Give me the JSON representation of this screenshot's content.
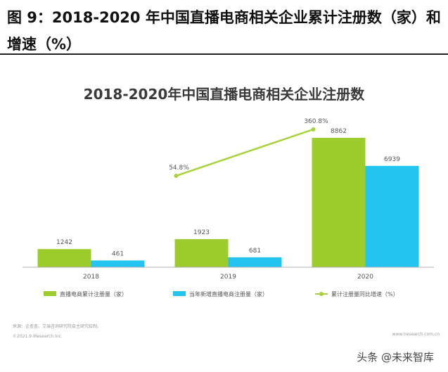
{
  "report_title": "图 9：2018-2020 年中国直播电商相关企业累计注册数（家）和增速（%）",
  "colors": {
    "cumulative": "#9ccc2c",
    "new": "#23c4ef",
    "growth": "#a6d33a",
    "axis": "#b0b0b0",
    "label": "#555555"
  },
  "chart_data": {
    "type": "bar",
    "title": "2018-2020年中国直播电商相关企业注册数",
    "categories": [
      "2018",
      "2019",
      "2020"
    ],
    "series": [
      {
        "name": "直播电商累计注册量（家）",
        "type": "bar",
        "values": [
          1242,
          1923,
          8862
        ],
        "color": "#9ccc2c"
      },
      {
        "name": "当年新增直播电商注册量（家）",
        "type": "bar",
        "values": [
          461,
          681,
          6939
        ],
        "color": "#23c4ef"
      },
      {
        "name": "累计注册量同比增速（%）",
        "type": "line",
        "values": [
          null,
          54.8,
          360.8
        ],
        "labels": [
          "",
          "54.8%",
          "360.8%"
        ],
        "color": "#a6d33a"
      }
    ],
    "ylim": [
      0,
      10400
    ],
    "grid": false,
    "legend": "bottom"
  },
  "notes": {
    "source": "来源：企查查。艾瑞咨询研究院自主研究绘制。",
    "copyright": "©2021.9 iResearch Inc.",
    "site": "www.iresearch.com.cn"
  },
  "watermark": "头条 @未来智库"
}
